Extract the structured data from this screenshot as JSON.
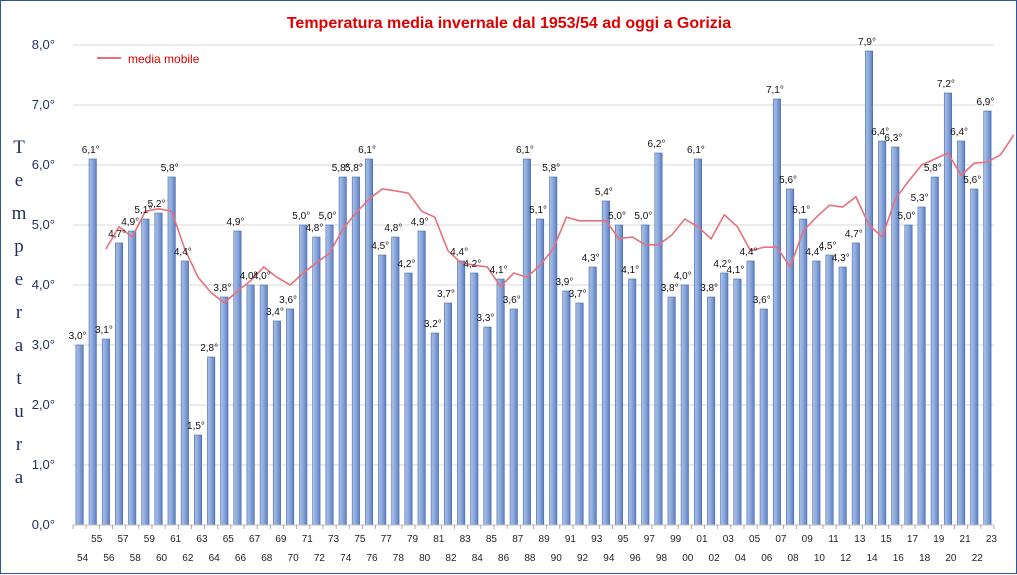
{
  "chart_data": {
    "type": "bar",
    "title": "Temperatura media invernale dal 1953/54 ad oggi a Gorizia",
    "ylabel": "Temperatura",
    "ylim": [
      0,
      8
    ],
    "y_ticks": [
      "0,0°",
      "1,0°",
      "2,0°",
      "3,0°",
      "4,0°",
      "5,0°",
      "6,0°",
      "7,0°",
      "8,0°"
    ],
    "grid": true,
    "legend_position": "top-left",
    "categories_top": [
      "",
      "55",
      "57",
      "59",
      "61",
      "63",
      "65",
      "67",
      "69",
      "71",
      "73",
      "75",
      "77",
      "79",
      "81",
      "83",
      "85",
      "87",
      "89",
      "91",
      "93",
      "95",
      "97",
      "99",
      "01",
      "03",
      "05",
      "07",
      "09",
      "11",
      "13",
      "15",
      "17",
      "19",
      "21",
      "23"
    ],
    "categories_bottom": [
      "54",
      "56",
      "58",
      "60",
      "62",
      "64",
      "66",
      "68",
      "70",
      "72",
      "74",
      "76",
      "78",
      "80",
      "82",
      "84",
      "86",
      "88",
      "90",
      "92",
      "94",
      "96",
      "98",
      "00",
      "02",
      "04",
      "06",
      "08",
      "10",
      "12",
      "14",
      "16",
      "18",
      "20",
      "22"
    ],
    "series": [
      {
        "values": [
          3.0,
          6.1,
          3.1,
          4.7,
          4.9,
          5.1,
          5.2,
          5.8,
          4.4,
          1.5,
          2.8,
          3.8,
          4.9,
          4.0,
          4.0,
          3.4,
          3.6,
          5.0,
          4.8,
          5.0,
          5.8,
          5.8,
          6.1,
          4.5,
          4.8,
          4.2,
          4.9,
          3.2,
          3.7,
          4.4,
          4.2,
          3.3,
          4.1,
          3.6,
          6.1,
          5.1,
          5.8,
          3.9,
          3.7,
          4.3,
          5.4,
          5.0,
          4.1,
          5.0,
          6.2,
          3.8,
          4.0,
          6.1,
          3.8,
          4.2,
          4.1,
          4.4,
          3.6,
          7.1,
          5.6,
          5.1,
          4.4,
          4.5,
          4.3,
          4.7,
          7.9,
          6.4,
          6.3,
          5.0,
          5.3,
          5.8,
          7.2,
          6.4,
          5.6,
          6.9
        ],
        "labels": [
          "3,0°",
          "6,1°",
          "3,1°",
          "4,7°",
          "4,9°",
          "5,1°",
          "5,2°",
          "5,8°",
          "4,4°",
          "1,5°",
          "2,8°",
          "3,8°",
          "4,9°",
          "4,0°",
          "4,0°",
          "3,4°",
          "3,6°",
          "5,0°",
          "4,8°",
          "5,0°",
          "5,8°",
          "5,8°",
          "6,1°",
          "4,5°",
          "4,8°",
          "4,2°",
          "4,9°",
          "3,2°",
          "3,7°",
          "4,4°",
          "4,2°",
          "3,3°",
          "4,1°",
          "3,6°",
          "6,1°",
          "5,1°",
          "5,8°",
          "3,9°",
          "3,7°",
          "4,3°",
          "5,4°",
          "5,0°",
          "4,1°",
          "5,0°",
          "6,2°",
          "3,8°",
          "4,0°",
          "6,1°",
          "3,8°",
          "4,2°",
          "4,1°",
          "4,4°",
          "3,6°",
          "7,1°",
          "5,6°",
          "5,1°",
          "4,4°",
          "4,5°",
          "4,3°",
          "4,7°",
          "7,9°",
          "6,4°",
          "6,3°",
          "5,0°",
          "5,3°",
          "5,8°",
          "7,2°",
          "6,4°",
          "5,6°",
          "6,9°"
        ],
        "color": "#8faadc"
      },
      {
        "name": "media mobile",
        "type": "line",
        "color": "#e8707a",
        "start_index": 2,
        "values": [
          4.6,
          4.97,
          4.8,
          5.23,
          5.27,
          5.23,
          4.6,
          4.13,
          3.87,
          3.7,
          3.9,
          4.07,
          4.3,
          4.13,
          4.0,
          4.2,
          4.37,
          4.53,
          4.93,
          5.2,
          5.43,
          5.6,
          5.57,
          5.53,
          5.23,
          5.13,
          4.57,
          4.37,
          4.33,
          4.3,
          3.97,
          4.2,
          4.13,
          4.33,
          4.6,
          5.13,
          5.07,
          5.07,
          5.07,
          4.77,
          4.8,
          4.67,
          4.67,
          4.83,
          5.1,
          4.97,
          4.77,
          5.17,
          4.97,
          4.57,
          4.63,
          4.63,
          4.3,
          4.9,
          5.13,
          5.33,
          5.3,
          5.47,
          5.0,
          4.8,
          5.43,
          5.73,
          6.0,
          6.1,
          6.2,
          5.83,
          6.03,
          6.05,
          6.17,
          6.5
        ]
      }
    ]
  }
}
